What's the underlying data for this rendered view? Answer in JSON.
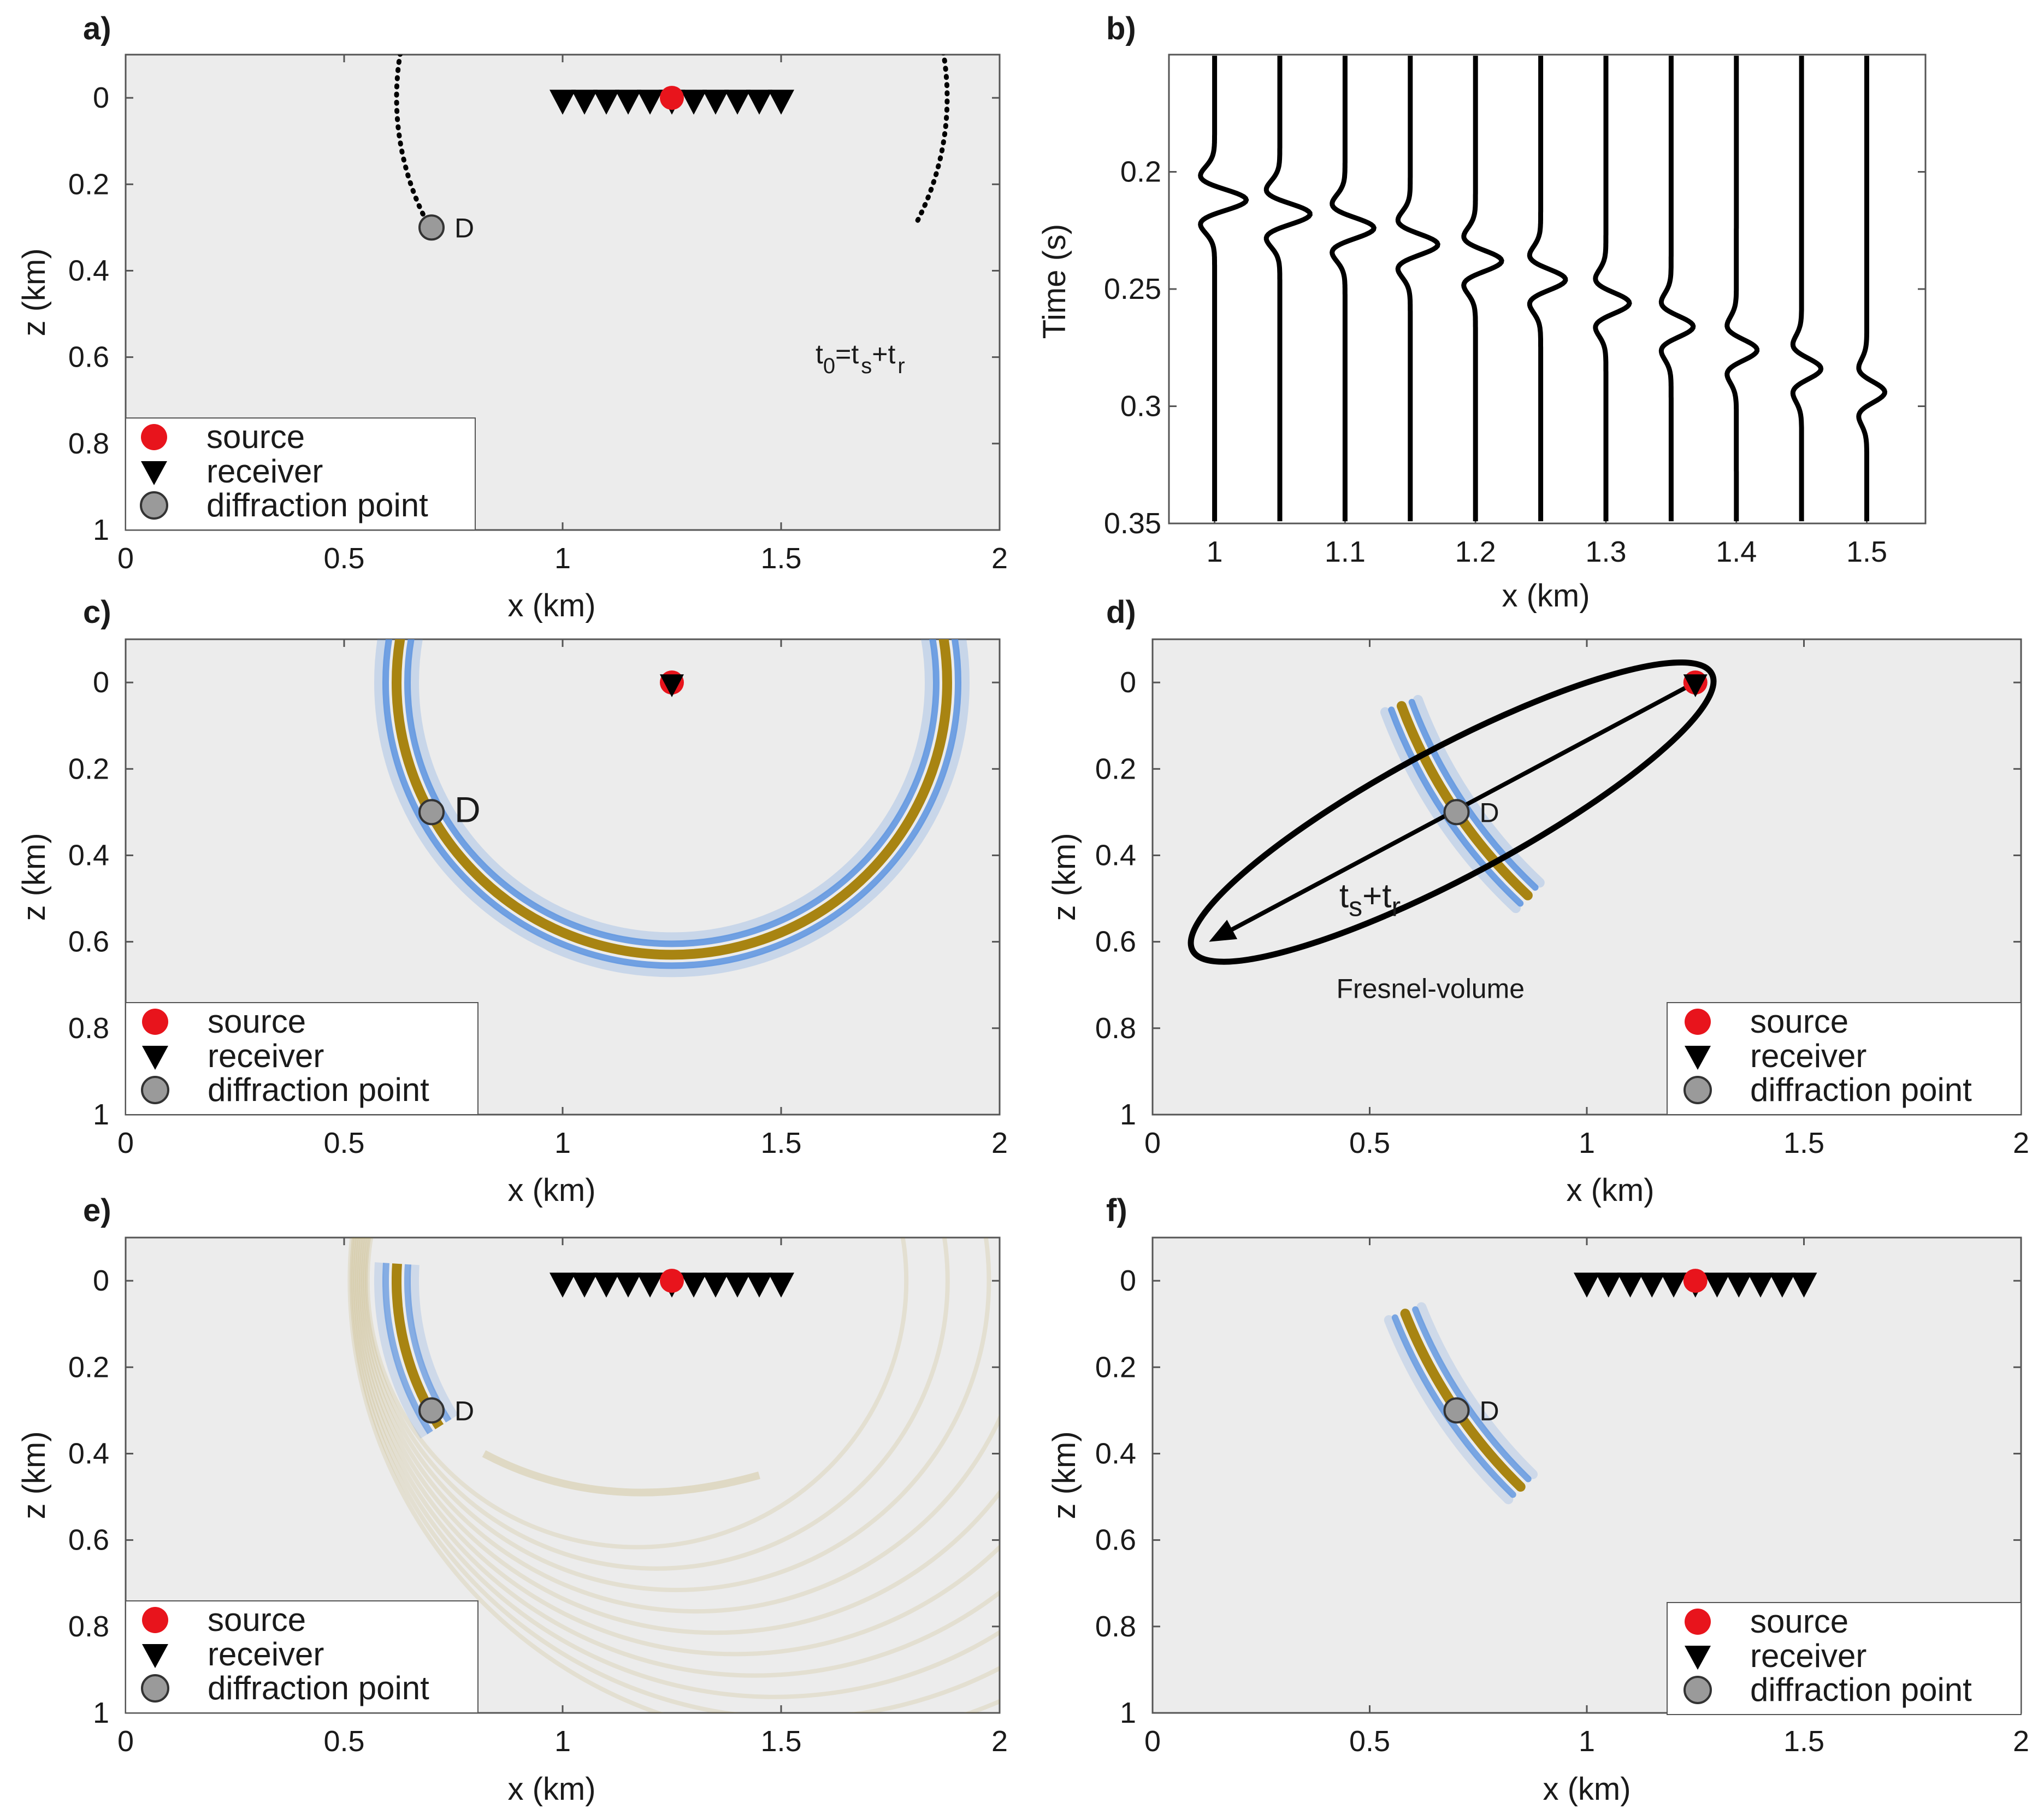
{
  "chart_data": [
    {
      "panel": "a)",
      "type": "scatter",
      "xlabel": "x (km)",
      "ylabel": "z (km)",
      "xlim": [
        0,
        2
      ],
      "ylim": [
        1,
        -0.1
      ],
      "xticks": [
        "0",
        "0.5",
        "1",
        "1.5",
        "2"
      ],
      "yticks": [
        "0",
        "0.2",
        "0.4",
        "0.6",
        "0.8",
        "1"
      ],
      "source": {
        "x": 1.25,
        "z": 0
      },
      "receivers": {
        "x": [
          1.0,
          1.05,
          1.1,
          1.15,
          1.2,
          1.25,
          1.3,
          1.35,
          1.4,
          1.45,
          1.5
        ],
        "z": 0
      },
      "diffraction_point": {
        "x": 0.7,
        "z": 0.3,
        "label": "D"
      },
      "isochrone": {
        "center_x": 1.25,
        "radius": 0.63,
        "style": "dotted"
      },
      "annotation": {
        "t0": "t",
        "t0_sub": "0",
        "eq": "=t",
        "ts_sub": "s",
        "plus": "+t",
        "tr_sub": "r"
      },
      "legend_loc": "bottom-left"
    },
    {
      "panel": "b)",
      "type": "line",
      "xlabel": "x (km)",
      "ylabel": "Time (s)",
      "xlim": [
        0.965,
        1.545
      ],
      "ylim": [
        0.35,
        0.15
      ],
      "xticks": [
        "1",
        "1.1",
        "1.2",
        "1.3",
        "1.4",
        "1.5"
      ],
      "yticks": [
        "0.2",
        "0.25",
        "0.3",
        "0.35"
      ],
      "trace_offsets_km": [
        1.0,
        1.05,
        1.1,
        1.15,
        1.2,
        1.25,
        1.3,
        1.35,
        1.4,
        1.45,
        1.5
      ],
      "arrival_times_s": [
        0.212,
        0.218,
        0.224,
        0.231,
        0.238,
        0.246,
        0.256,
        0.266,
        0.276,
        0.284,
        0.294
      ]
    },
    {
      "panel": "c)",
      "type": "heatmap",
      "xlabel": "x (km)",
      "ylabel": "z (km)",
      "xlim": [
        0,
        2
      ],
      "ylim": [
        1,
        -0.1
      ],
      "xticks": [
        "0",
        "0.5",
        "1",
        "1.5",
        "2"
      ],
      "yticks": [
        "0",
        "0.2",
        "0.4",
        "0.6",
        "0.8",
        "1"
      ],
      "source": {
        "x": 1.25,
        "z": 0
      },
      "receiver": {
        "x": 1.25,
        "z": 0
      },
      "diffraction_point": {
        "x": 0.7,
        "z": 0.3,
        "label": "D"
      },
      "kernel_ring": {
        "center_x": 1.25,
        "radius": 0.63
      },
      "legend_loc": "bottom-left"
    },
    {
      "panel": "d)",
      "type": "heatmap",
      "xlabel": "x (km)",
      "ylabel": "z (km)",
      "xlim": [
        0,
        2
      ],
      "ylim": [
        1,
        -0.1
      ],
      "xticks": [
        "0",
        "0.5",
        "1",
        "1.5",
        "2"
      ],
      "yticks": [
        "0",
        "0.2",
        "0.4",
        "0.6",
        "0.8",
        "1"
      ],
      "source": {
        "x": 1.25,
        "z": 0
      },
      "receiver": {
        "x": 1.25,
        "z": 0
      },
      "diffraction_point": {
        "x": 0.7,
        "z": 0.3,
        "label": "D"
      },
      "arrow_to": {
        "x": 0.13,
        "z": 0.6
      },
      "arrow_label": {
        "t": "t",
        "s": "s",
        "plus": "+t",
        "r": "r"
      },
      "ellipse_label": "Fresnel-volume",
      "legend_loc": "bottom-right"
    },
    {
      "panel": "e)",
      "type": "heatmap",
      "xlabel": "x (km)",
      "ylabel": "z (km)",
      "xlim": [
        0,
        2
      ],
      "ylim": [
        1,
        -0.1
      ],
      "xticks": [
        "0",
        "0.5",
        "1",
        "1.5",
        "2"
      ],
      "yticks": [
        "0",
        "0.2",
        "0.4",
        "0.6",
        "0.8",
        "1"
      ],
      "source": {
        "x": 1.25,
        "z": 0
      },
      "receivers": {
        "x": [
          1.0,
          1.05,
          1.1,
          1.15,
          1.2,
          1.25,
          1.3,
          1.35,
          1.4,
          1.45,
          1.5
        ],
        "z": 0
      },
      "diffraction_point": {
        "x": 0.7,
        "z": 0.3,
        "label": "D"
      },
      "legend_loc": "bottom-left"
    },
    {
      "panel": "f)",
      "type": "heatmap",
      "xlabel": "x (km)",
      "ylabel": "z (km)",
      "xlim": [
        0,
        2
      ],
      "ylim": [
        1,
        -0.1
      ],
      "xticks": [
        "0",
        "0.5",
        "1",
        "1.5",
        "2"
      ],
      "yticks": [
        "0",
        "0.2",
        "0.4",
        "0.6",
        "0.8",
        "1"
      ],
      "source": {
        "x": 1.25,
        "z": 0
      },
      "receivers": {
        "x": [
          1.0,
          1.05,
          1.1,
          1.15,
          1.2,
          1.25,
          1.3,
          1.35,
          1.4,
          1.45,
          1.5
        ],
        "z": 0
      },
      "diffraction_point": {
        "x": 0.7,
        "z": 0.3,
        "label": "D"
      },
      "legend_loc": "bottom-right"
    }
  ],
  "legend": {
    "items": [
      "source",
      "receiver",
      "diffraction point"
    ]
  },
  "colors": {
    "plot_bg": "#ececec",
    "source": "#e8141c",
    "diffraction": "#9a9a9a",
    "kernel_core": "#a88412",
    "kernel_side": "#5b93e0",
    "ink": "#000000"
  }
}
